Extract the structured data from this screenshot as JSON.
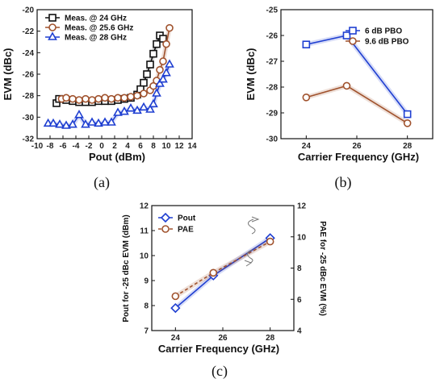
{
  "chart_data": [
    {
      "type": "line",
      "caption": "(a)",
      "xlabel": "Pout (dBm)",
      "ylabel": "EVM (dBc)",
      "xlim": [
        -10,
        14
      ],
      "ylim": [
        -32,
        -20
      ],
      "xticks": [
        -10,
        -8,
        -6,
        -4,
        -2,
        0,
        2,
        4,
        6,
        8,
        10,
        12,
        14
      ],
      "yticks": [
        -32,
        -30,
        -28,
        -26,
        -24,
        -22,
        -20
      ],
      "legend_position": "top-left",
      "series": [
        {
          "name": "Meas. @ 24 GHz",
          "color": "#111111",
          "marker": "square",
          "x": [
            -7.0,
            -6.6,
            -5.5,
            -4.5,
            -3.5,
            -2.5,
            -1.5,
            -0.5,
            0.5,
            1.5,
            2.5,
            3.5,
            4.5,
            5.5,
            6.0,
            6.5,
            7.0,
            7.5,
            8.0,
            8.5,
            9.0,
            9.5
          ],
          "y": [
            -28.7,
            -28.3,
            -28.4,
            -28.5,
            -28.6,
            -28.6,
            -28.6,
            -28.5,
            -28.5,
            -28.5,
            -28.4,
            -28.3,
            -28.2,
            -27.9,
            -27.4,
            -26.8,
            -26.0,
            -25.1,
            -24.1,
            -23.2,
            -22.4,
            -22.7
          ]
        },
        {
          "name": "Meas. @ 25.6 GHz",
          "color": "#a0522d",
          "marker": "circle",
          "x": [
            -6.2,
            -5.5,
            -4.5,
            -3.5,
            -2.5,
            -1.5,
            -0.5,
            0.5,
            1.5,
            2.5,
            3.5,
            4.5,
            5.5,
            6.5,
            7.5,
            8.0,
            8.5,
            9.0,
            9.5,
            10.0,
            10.5
          ],
          "y": [
            -28.3,
            -28.2,
            -28.3,
            -28.4,
            -28.3,
            -28.4,
            -28.3,
            -28.2,
            -28.3,
            -28.2,
            -28.2,
            -28.1,
            -28.0,
            -27.8,
            -27.5,
            -27.1,
            -26.6,
            -25.6,
            -24.8,
            -23.2,
            -21.7
          ]
        },
        {
          "name": "Meas. @ 28 GHz",
          "color": "#1f3fd1",
          "marker": "triangle",
          "x": [
            -8.3,
            -7.5,
            -6.5,
            -5.5,
            -4.5,
            -3.5,
            -2.5,
            -1.5,
            -0.5,
            0.5,
            1.5,
            2.5,
            3.5,
            4.5,
            5.5,
            6.5,
            7.5,
            8.0,
            8.5,
            9.0,
            9.5,
            10.0,
            10.5
          ],
          "y": [
            -30.6,
            -30.6,
            -30.7,
            -30.8,
            -30.7,
            -29.8,
            -30.7,
            -30.5,
            -30.6,
            -30.5,
            -30.5,
            -29.6,
            -29.5,
            -29.2,
            -29.4,
            -29.1,
            -29.3,
            -28.8,
            -27.8,
            -26.9,
            -26.5,
            -25.9,
            -25.1
          ]
        }
      ]
    },
    {
      "type": "line",
      "caption": "(b)",
      "xlabel": "Carrier Frequency (GHz)",
      "ylabel": "EVM (dBc)",
      "xlim": [
        23,
        29
      ],
      "ylim": [
        -30,
        -25
      ],
      "xticks": [
        24,
        26,
        28
      ],
      "yticks": [
        -30,
        -29,
        -28,
        -27,
        -26,
        -25
      ],
      "legend_position": "top-right",
      "series": [
        {
          "name": "6 dB PBO",
          "color": "#1f3fd1",
          "marker": "square",
          "x": [
            24,
            25.6,
            28
          ],
          "y": [
            -26.35,
            -26.0,
            -29.05
          ]
        },
        {
          "name": "9.6 dB PBO",
          "color": "#a0522d",
          "marker": "circle",
          "x": [
            24,
            25.6,
            28
          ],
          "y": [
            -28.4,
            -27.95,
            -29.4
          ]
        }
      ]
    },
    {
      "type": "line",
      "caption": "(c)",
      "xlabel": "Carrier Frequency (GHz)",
      "ylabel": "Pout for -25 dBc EVM (dBm)",
      "y2label": "PAE for -25 dBc EVM (%)",
      "xlim": [
        23,
        29
      ],
      "ylim": [
        7,
        12
      ],
      "y2lim": [
        4,
        12
      ],
      "xticks": [
        24,
        26,
        28
      ],
      "yticks": [
        7,
        8,
        9,
        10,
        11,
        12
      ],
      "y2ticks": [
        4,
        6,
        8,
        10,
        12
      ],
      "legend_position": "top-left",
      "series": [
        {
          "name": "Pout",
          "color": "#1f3fd1",
          "marker": "diamond",
          "axis": "left",
          "x": [
            24,
            25.6,
            28
          ],
          "y": [
            7.9,
            9.2,
            10.7
          ]
        },
        {
          "name": "PAE",
          "color": "#a0522d",
          "marker": "circle",
          "axis": "right",
          "dashed": true,
          "x": [
            24,
            25.6,
            28
          ],
          "y": [
            6.2,
            7.7,
            9.7
          ]
        }
      ]
    }
  ]
}
